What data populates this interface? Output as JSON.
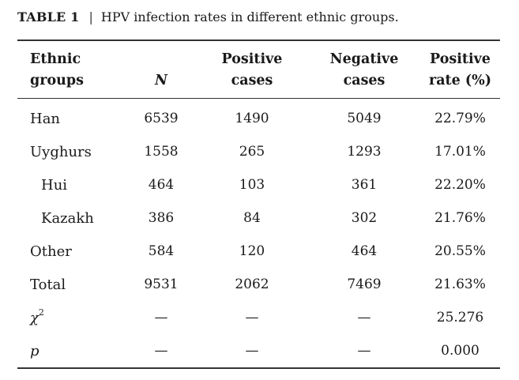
{
  "caption": {
    "label": "TABLE 1",
    "separator": "|",
    "text": "HPV infection rates in different ethnic groups."
  },
  "table": {
    "headers": {
      "group_line1": "Ethnic",
      "group_line2": "groups",
      "n": "N",
      "pos_line1": "Positive",
      "pos_line2": "cases",
      "neg_line1": "Negative",
      "neg_line2": "cases",
      "rate_line1": "Positive",
      "rate_line2": "rate (%)"
    },
    "rows": [
      {
        "group": "Han",
        "n": "6539",
        "positive": "1490",
        "negative": "5049",
        "rate": "22.79%"
      },
      {
        "group": "Uyghurs",
        "n": "1558",
        "positive": "265",
        "negative": "1293",
        "rate": "17.01%"
      },
      {
        "group": "Hui",
        "n": "464",
        "positive": "103",
        "negative": "361",
        "rate": "22.20%"
      },
      {
        "group": "Kazakh",
        "n": "386",
        "positive": "84",
        "negative": "302",
        "rate": "21.76%"
      },
      {
        "group": "Other",
        "n": "584",
        "positive": "120",
        "negative": "464",
        "rate": "20.55%"
      },
      {
        "group": "Total",
        "n": "9531",
        "positive": "2062",
        "negative": "7469",
        "rate": "21.63%"
      },
      {
        "group": "χ",
        "group_sup": "2",
        "n": "—",
        "positive": "—",
        "negative": "—",
        "rate": "25.276"
      },
      {
        "group": "p",
        "n": "—",
        "positive": "—",
        "negative": "—",
        "rate": "0.000"
      }
    ]
  }
}
